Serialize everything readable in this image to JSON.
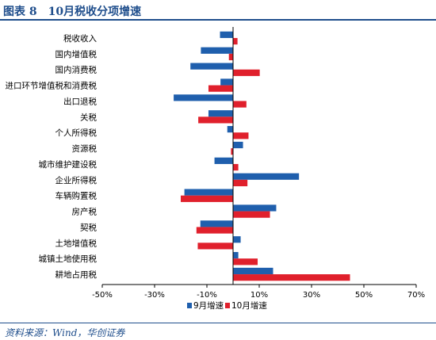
{
  "header": {
    "title": "图表 8　10月税收分项增速"
  },
  "footer": {
    "source": "资料来源：Wind，华创证券"
  },
  "colors": {
    "title": "#1f4e8c",
    "series_sep": "#1f5fad",
    "series_oct": "#e0202c",
    "axis": "#000000"
  },
  "chart_data": {
    "type": "bar",
    "orientation": "horizontal",
    "categories": [
      "税收收入",
      "国内增值税",
      "国内消费税",
      "进口环节增值税和消费税",
      "出口退税",
      "关税",
      "个人所得税",
      "资源税",
      "城市维护建设税",
      "企业所得税",
      "车辆购置税",
      "房产税",
      "契税",
      "土地增值税",
      "城镇土地使用税",
      "耕地占用税"
    ],
    "series": [
      {
        "name": "9月增速",
        "color": "#1f5fad",
        "values": [
          -5,
          -12.3,
          -16.3,
          -4.8,
          -22.7,
          -9.4,
          -2.2,
          3.8,
          -7.1,
          25.2,
          -18.6,
          16.5,
          -12.5,
          2.9,
          2.0,
          15.3
        ]
      },
      {
        "name": "10月增速",
        "color": "#e0202c",
        "values": [
          1.7,
          -1.6,
          10.2,
          -9.4,
          5.1,
          -13.3,
          5.9,
          -0.8,
          2.0,
          5.5,
          -20.0,
          14.1,
          -14.0,
          -13.5,
          9.4,
          44.7
        ]
      }
    ],
    "xlim": [
      -50,
      70
    ],
    "xticks": [
      -50,
      -30,
      -10,
      10,
      30,
      50,
      70
    ],
    "tick_suffix": "%",
    "grid": false,
    "legend_position": "bottom"
  }
}
